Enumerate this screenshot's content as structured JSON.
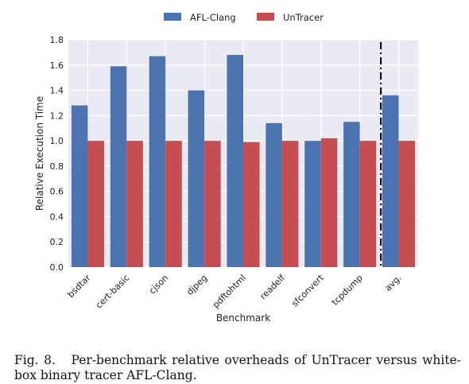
{
  "chart_data": {
    "type": "bar",
    "categories": [
      "bsdtar",
      "cert-basic",
      "cjson",
      "djpeg",
      "pdftohtml",
      "readelf",
      "sfconvert",
      "tcpdump",
      "avg."
    ],
    "series": [
      {
        "name": "AFL-Clang",
        "color": "#4c72b0",
        "values": [
          1.28,
          1.59,
          1.67,
          1.4,
          1.68,
          1.14,
          1.0,
          1.15,
          1.36
        ]
      },
      {
        "name": "UnTracer",
        "color": "#c44e52",
        "values": [
          1.0,
          1.0,
          1.0,
          1.0,
          0.99,
          1.0,
          1.02,
          1.0,
          1.0
        ]
      }
    ],
    "xlabel": "Benchmark",
    "ylabel": "Relative Execution Time",
    "ylim": [
      0,
      1.8
    ],
    "yticks": [
      "0.0",
      "0.2",
      "0.4",
      "0.6",
      "0.8",
      "1.0",
      "1.2",
      "1.4",
      "1.6",
      "1.8"
    ],
    "grid": true,
    "legend_position": "top-center",
    "annotation": "dash-dot vertical separator before avg."
  },
  "caption": {
    "label": "Fig. 8.",
    "text": "Per-benchmark relative overheads of UnTracer versus white-box binary tracer AFL-Clang."
  }
}
